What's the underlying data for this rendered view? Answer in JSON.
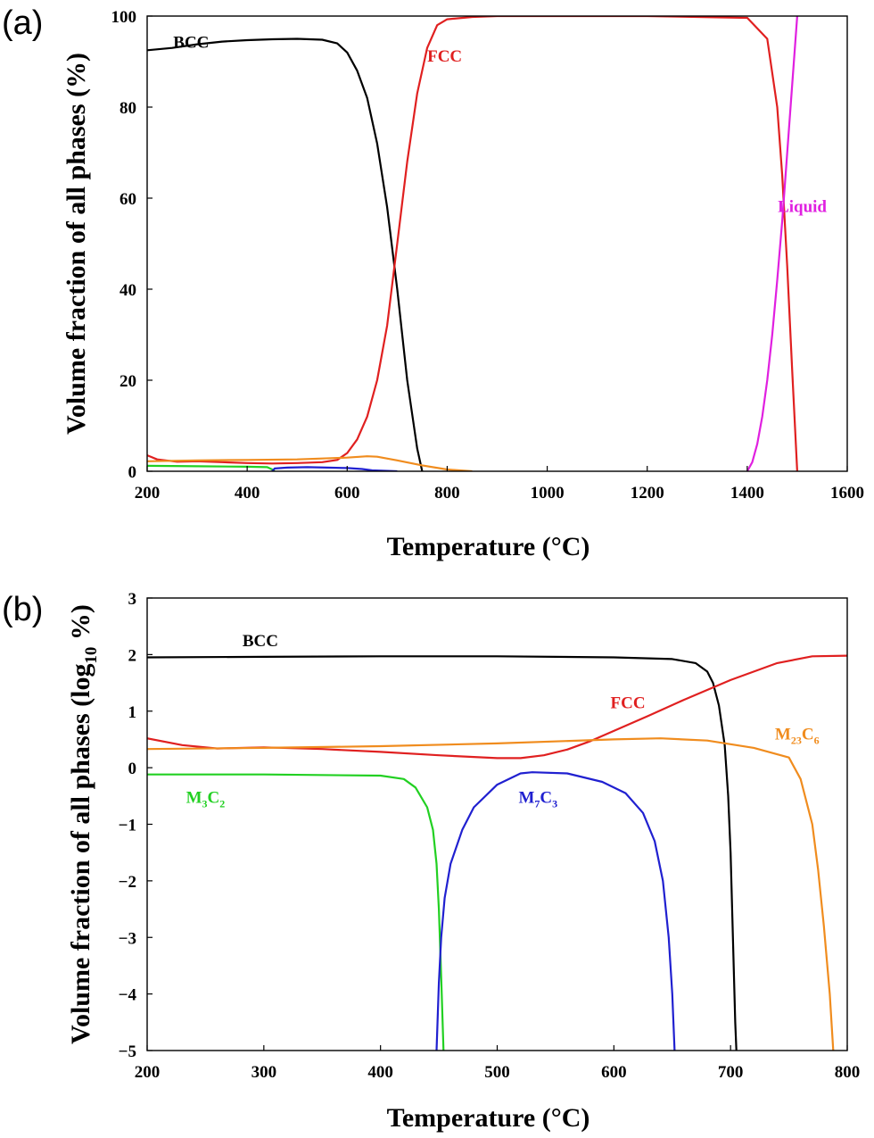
{
  "chart_data": [
    {
      "panel": "(a)",
      "type": "line",
      "xlabel": "Temperature (°C)",
      "ylabel": "Volume fraction of all phases (%)",
      "xlim": [
        200,
        1600
      ],
      "ylim": [
        0,
        100
      ],
      "xticks": [
        200,
        400,
        600,
        800,
        1000,
        1200,
        1400,
        1600
      ],
      "yticks": [
        0,
        20,
        40,
        60,
        80,
        100
      ],
      "grid": false,
      "series": [
        {
          "name": "BCC",
          "color": "#000000",
          "label": {
            "text": "BCC",
            "x": 288,
            "y": 93
          },
          "x": [
            200,
            250,
            300,
            350,
            400,
            450,
            500,
            550,
            580,
            600,
            620,
            640,
            660,
            680,
            700,
            720,
            740,
            750
          ],
          "y": [
            92.5,
            93.0,
            93.8,
            94.4,
            94.7,
            94.9,
            95.0,
            94.8,
            94.0,
            92.0,
            88.0,
            82.0,
            72.0,
            58.0,
            40.0,
            20.0,
            5.0,
            0
          ]
        },
        {
          "name": "FCC",
          "color": "#e02020",
          "label": {
            "text": "FCC",
            "x": 795,
            "y": 90
          },
          "x": [
            200,
            220,
            260,
            300,
            350,
            400,
            450,
            500,
            550,
            580,
            600,
            620,
            640,
            660,
            680,
            700,
            720,
            740,
            760,
            780,
            800,
            850,
            900,
            1000,
            1200,
            1400,
            1440,
            1460,
            1470,
            1480,
            1490,
            1500
          ],
          "y": [
            3.5,
            2.6,
            2.1,
            2.2,
            2.0,
            1.8,
            1.7,
            1.8,
            2.0,
            2.5,
            4.0,
            7.0,
            12.0,
            20.0,
            32.0,
            50.0,
            68.0,
            83.0,
            93.0,
            98.0,
            99.3,
            99.8,
            100,
            100,
            100,
            99.6,
            95.0,
            80.0,
            65.0,
            45.0,
            22.0,
            0
          ]
        },
        {
          "name": "Liquid",
          "color": "#e020e0",
          "label": {
            "text": "Liquid",
            "x": 1510,
            "y": 57
          },
          "x": [
            1400,
            1410,
            1420,
            1430,
            1440,
            1450,
            1460,
            1470,
            1480,
            1490,
            1500
          ],
          "y": [
            0,
            2.0,
            6.0,
            12.0,
            20.0,
            30.0,
            42.0,
            55.0,
            70.0,
            85.0,
            100
          ]
        },
        {
          "name": "M23C6",
          "color": "#f08c1e",
          "x": [
            200,
            300,
            400,
            500,
            550,
            600,
            640,
            660,
            700,
            750,
            800,
            850
          ],
          "y": [
            2.2,
            2.4,
            2.5,
            2.6,
            2.8,
            3.0,
            3.3,
            3.2,
            2.4,
            1.3,
            0.4,
            0
          ]
        },
        {
          "name": "M3C2",
          "color": "#22d022",
          "x": [
            200,
            300,
            400,
            440,
            450,
            455
          ],
          "y": [
            1.2,
            1.1,
            1.0,
            0.9,
            0.4,
            0
          ]
        },
        {
          "name": "M7C3",
          "color": "#2020d0",
          "x": [
            450,
            455,
            480,
            520,
            560,
            600,
            630,
            650,
            700
          ],
          "y": [
            0,
            0.6,
            0.8,
            0.9,
            0.8,
            0.7,
            0.5,
            0.2,
            0
          ]
        }
      ]
    },
    {
      "panel": "(b)",
      "type": "line",
      "xlabel": "Temperature (°C)",
      "ylabel": "Volume fraction of all phases (log₁₀ %)",
      "xlim": [
        200,
        800
      ],
      "ylim": [
        -5,
        3
      ],
      "xticks": [
        200,
        300,
        400,
        500,
        600,
        700,
        800
      ],
      "yticks": [
        -5,
        -4,
        -3,
        -2,
        -1,
        0,
        1,
        2,
        3
      ],
      "grid": false,
      "series": [
        {
          "name": "BCC",
          "color": "#000000",
          "label": {
            "text": "BCC",
            "x": 297,
            "y": 2.15
          },
          "x": [
            200,
            300,
            400,
            500,
            600,
            650,
            670,
            680,
            685,
            690,
            695,
            698,
            700,
            702,
            704,
            705
          ],
          "y": [
            1.95,
            1.96,
            1.97,
            1.97,
            1.95,
            1.92,
            1.85,
            1.7,
            1.5,
            1.1,
            0.4,
            -0.5,
            -1.5,
            -3.0,
            -4.5,
            -5.0
          ]
        },
        {
          "name": "FCC",
          "color": "#e02020",
          "label": {
            "text": "FCC",
            "x": 612,
            "y": 1.05
          },
          "x": [
            200,
            230,
            260,
            300,
            350,
            400,
            450,
            500,
            520,
            540,
            560,
            580,
            600,
            630,
            660,
            700,
            740,
            770,
            800
          ],
          "y": [
            0.52,
            0.4,
            0.34,
            0.36,
            0.33,
            0.28,
            0.22,
            0.17,
            0.17,
            0.22,
            0.32,
            0.47,
            0.65,
            0.92,
            1.2,
            1.55,
            1.85,
            1.97,
            1.98
          ]
        },
        {
          "name": "M23C6",
          "color": "#f08c1e",
          "label": {
            "text": "M",
            "sub": "23",
            "text2": "C",
            "sub2": "6",
            "x": 757,
            "y": 0.5
          },
          "x": [
            200,
            300,
            400,
            500,
            600,
            640,
            680,
            720,
            750,
            760,
            770,
            775,
            780,
            785,
            788
          ],
          "y": [
            0.33,
            0.35,
            0.38,
            0.43,
            0.5,
            0.52,
            0.48,
            0.35,
            0.18,
            -0.2,
            -1.0,
            -1.8,
            -2.8,
            -4.0,
            -5.0
          ]
        },
        {
          "name": "M3C2",
          "color": "#22d022",
          "label": {
            "text": "M",
            "sub": "3",
            "text2": "C",
            "sub2": "2",
            "x": 250,
            "y": -0.62
          },
          "x": [
            200,
            300,
            400,
            420,
            430,
            440,
            445,
            448,
            450,
            452,
            454
          ],
          "y": [
            -0.12,
            -0.12,
            -0.14,
            -0.2,
            -0.35,
            -0.7,
            -1.1,
            -1.7,
            -2.5,
            -3.7,
            -5.0
          ]
        },
        {
          "name": "M7C3",
          "color": "#2020d0",
          "label": {
            "text": "M",
            "sub": "7",
            "text2": "C",
            "sub2": "3",
            "x": 535,
            "y": -0.62
          },
          "x": [
            448,
            450,
            452,
            455,
            460,
            470,
            480,
            500,
            520,
            530,
            560,
            590,
            610,
            625,
            635,
            642,
            647,
            650,
            652
          ],
          "y": [
            -5.0,
            -3.8,
            -3.0,
            -2.3,
            -1.7,
            -1.1,
            -0.7,
            -0.3,
            -0.1,
            -0.08,
            -0.1,
            -0.25,
            -0.45,
            -0.8,
            -1.3,
            -2.0,
            -3.0,
            -4.0,
            -5.0
          ]
        }
      ]
    }
  ]
}
